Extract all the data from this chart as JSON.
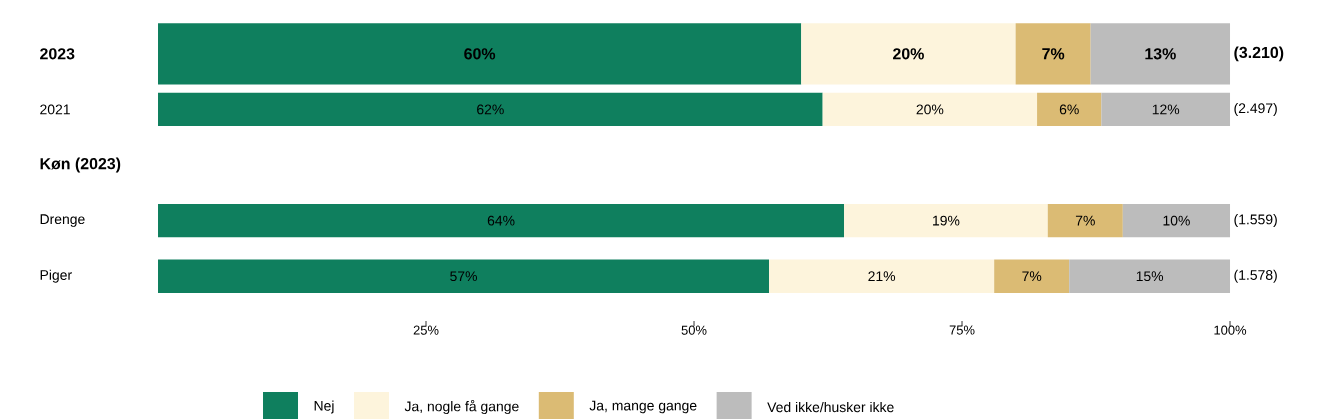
{
  "chart_data": {
    "type": "bar",
    "orientation": "horizontal",
    "stacked": true,
    "categories": [
      "2023",
      "2021",
      "Køn (2023)",
      "Drenge",
      "Piger"
    ],
    "series": [
      {
        "name": "Nej",
        "color": "#0f7f5e",
        "values": [
          60,
          62,
          null,
          64,
          57
        ],
        "value_labels": [
          "60%",
          "62%",
          null,
          "64%",
          "57%"
        ]
      },
      {
        "name": "Ja, nogle få gange",
        "color": "#fdf4dc",
        "values": [
          20,
          20,
          null,
          19,
          21
        ],
        "value_labels": [
          "20%",
          "20%",
          null,
          "19%",
          "21%"
        ]
      },
      {
        "name": "Ja, mange gange",
        "color": "#dbbb74",
        "values": [
          7,
          6,
          null,
          7,
          7
        ],
        "value_labels": [
          "7%",
          "6%",
          null,
          "7%",
          "7%"
        ]
      },
      {
        "name": "Ved ikke/husker ikke",
        "color": "#bcbcbc",
        "values": [
          13,
          12,
          null,
          10,
          15
        ],
        "value_labels": [
          "13%",
          "12%",
          null,
          "10%",
          "15%"
        ]
      }
    ],
    "xlim": [
      0,
      100
    ],
    "xticks": [
      {
        "value": 25,
        "label": "25%"
      },
      {
        "value": 50,
        "label": "50%"
      },
      {
        "value": 75,
        "label": "75%"
      },
      {
        "value": 100,
        "label": "100%"
      }
    ],
    "annotations": [
      "(3.210)",
      "(2.497)",
      "(1.559)",
      "(1.578)"
    ],
    "legend": "bottom"
  }
}
